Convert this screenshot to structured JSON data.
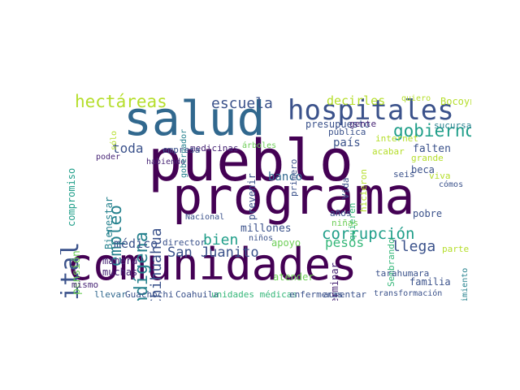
{
  "palette": {
    "dark_purple": "#440154",
    "purple": "#482576",
    "indigo": "#3b528b",
    "blue": "#31688e",
    "teal": "#26828e",
    "sea": "#1f9e89",
    "green": "#35b779",
    "lime": "#6ece58",
    "yellow_green": "#b5de2b",
    "yellow": "#e2e418"
  },
  "words": [
    "pueblo",
    "programa",
    "comunidades",
    "salud",
    "hospitales",
    "hospital",
    "hectáreas",
    "escuela",
    "gobierno",
    "indígena",
    "empleo",
    "Chihuahua",
    "corrupción",
    "toda",
    "bien",
    "San Juanito",
    "llega",
    "pesos",
    "país",
    "millones",
    "beca",
    "falten",
    "pobre",
    "médico",
    "banco",
    "pensión",
    "manera",
    "muchas",
    "compromiso",
    "Bienestar",
    "decirles",
    "Bocoyna",
    "presupuesto",
    "gente",
    "sucursales",
    "pública",
    "internet",
    "acabar",
    "grande",
    "viva",
    "seis",
    "cómos",
    "parte",
    "Sembrando",
    "Vida",
    "quieren",
    "tarahumara",
    "familia",
    "atender",
    "apoyo",
    "director",
    "Nacional",
    "años",
    "niñas",
    "Guachochi",
    "Coahuila",
    "unidades médicas",
    "enfermeras",
    "aumentar",
    "transformación",
    "llevar",
    "mismo",
    "medicinas",
    "árboles",
    "primero",
    "prevenir",
    "empresa",
    "habiendo",
    "sólo",
    "gobernador",
    "poder",
    "terminar",
    "hicieron",
    "mantenimiento",
    "quiero",
    "niños"
  ]
}
